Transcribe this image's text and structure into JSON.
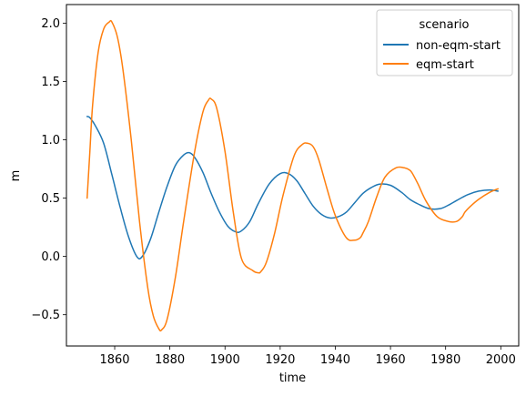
{
  "chart_data": {
    "type": "line",
    "xlabel": "time",
    "ylabel": "m",
    "xlim": [
      1842.5,
      2006.5
    ],
    "ylim": [
      -0.768,
      2.16
    ],
    "xticks": [
      1860,
      1880,
      1900,
      1920,
      1940,
      1960,
      1980,
      2000
    ],
    "yticks": [
      -0.5,
      0.0,
      0.5,
      1.0,
      1.5,
      2.0
    ],
    "ytick_labels": [
      "−0.5",
      "0.0",
      "0.5",
      "1.0",
      "1.5",
      "2.0"
    ],
    "grid": false,
    "legend": {
      "title": "scenario",
      "placement": "top-right"
    },
    "series": [
      {
        "name": "non-eqm-start",
        "color": "#1f77b4",
        "x": [
          1850,
          1851,
          1853,
          1856,
          1859,
          1862,
          1865,
          1868,
          1870,
          1873,
          1876,
          1879,
          1882,
          1885,
          1887,
          1889,
          1892,
          1895,
          1898,
          1901,
          1904,
          1906,
          1909,
          1912,
          1916,
          1920,
          1923,
          1926,
          1929,
          1932,
          1935,
          1938,
          1941,
          1944,
          1947,
          1950,
          1953,
          1956,
          1960,
          1964,
          1967,
          1970,
          1974,
          1978,
          1981,
          1984,
          1988,
          1992,
          1996,
          1999
        ],
        "y": [
          1.2,
          1.19,
          1.12,
          0.97,
          0.7,
          0.42,
          0.17,
          0.0,
          0.0,
          0.15,
          0.38,
          0.6,
          0.78,
          0.87,
          0.89,
          0.85,
          0.72,
          0.54,
          0.38,
          0.26,
          0.21,
          0.22,
          0.3,
          0.45,
          0.62,
          0.71,
          0.71,
          0.65,
          0.54,
          0.43,
          0.36,
          0.33,
          0.34,
          0.38,
          0.46,
          0.54,
          0.59,
          0.62,
          0.61,
          0.55,
          0.49,
          0.45,
          0.41,
          0.41,
          0.44,
          0.48,
          0.53,
          0.56,
          0.57,
          0.56
        ]
      },
      {
        "name": "eqm-start",
        "color": "#ff7f0e",
        "x": [
          1850,
          1851,
          1852,
          1854,
          1856,
          1858,
          1859,
          1861,
          1863,
          1866,
          1869,
          1872,
          1874,
          1876,
          1877,
          1879,
          1882,
          1885,
          1889,
          1892,
          1894,
          1895,
          1897,
          1900,
          1903,
          1906,
          1910,
          1912,
          1913,
          1915,
          1918,
          1921,
          1925,
          1928,
          1930,
          1932,
          1934,
          1937,
          1940,
          1944,
          1947,
          1949,
          1950,
          1952,
          1955,
          1958,
          1962,
          1965,
          1967,
          1968,
          1970,
          1973,
          1977,
          1981,
          1984,
          1986,
          1987,
          1989,
          1992,
          1996,
          1999
        ],
        "y": [
          0.5,
          0.9,
          1.3,
          1.75,
          1.95,
          2.01,
          2.01,
          1.88,
          1.6,
          1.0,
          0.3,
          -0.27,
          -0.51,
          -0.62,
          -0.63,
          -0.54,
          -0.18,
          0.3,
          0.9,
          1.24,
          1.34,
          1.35,
          1.27,
          0.9,
          0.38,
          -0.02,
          -0.12,
          -0.14,
          -0.13,
          -0.05,
          0.2,
          0.52,
          0.86,
          0.96,
          0.97,
          0.94,
          0.83,
          0.58,
          0.35,
          0.16,
          0.14,
          0.16,
          0.2,
          0.3,
          0.51,
          0.68,
          0.76,
          0.76,
          0.74,
          0.71,
          0.62,
          0.47,
          0.34,
          0.3,
          0.3,
          0.34,
          0.38,
          0.43,
          0.49,
          0.55,
          0.58
        ]
      }
    ]
  }
}
